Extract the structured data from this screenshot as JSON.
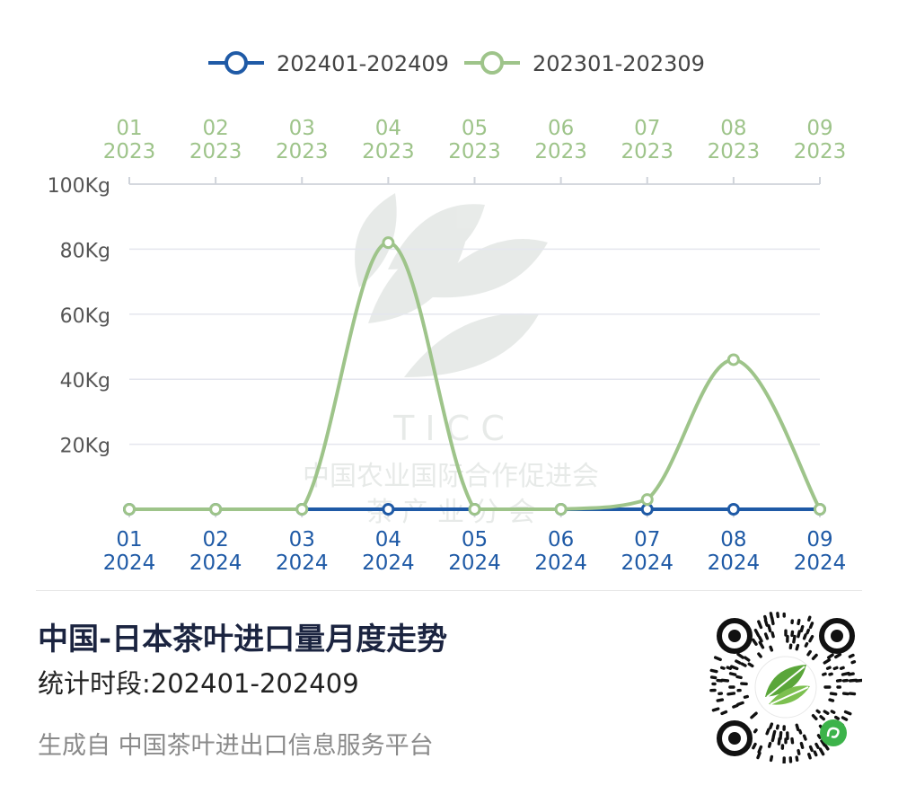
{
  "legend": [
    {
      "label": "202401-202409",
      "color": "#1f5aa6"
    },
    {
      "label": "202301-202309",
      "color": "#9ec48a"
    }
  ],
  "watermark": {
    "line1": "T I C C",
    "line2": "中国农业国际合作促进会",
    "line3": "茶   产   业   分   会"
  },
  "chart_data": {
    "type": "line",
    "y_ticks": [
      "100Kg",
      "80Kg",
      "60Kg",
      "40Kg",
      "20Kg"
    ],
    "ylim": [
      0,
      100
    ],
    "y_unit": "Kg",
    "x_top": [
      {
        "month": "01",
        "year": "2023"
      },
      {
        "month": "02",
        "year": "2023"
      },
      {
        "month": "03",
        "year": "2023"
      },
      {
        "month": "04",
        "year": "2023"
      },
      {
        "month": "05",
        "year": "2023"
      },
      {
        "month": "06",
        "year": "2023"
      },
      {
        "month": "07",
        "year": "2023"
      },
      {
        "month": "08",
        "year": "2023"
      },
      {
        "month": "09",
        "year": "2023"
      }
    ],
    "x_bottom": [
      {
        "month": "01",
        "year": "2024"
      },
      {
        "month": "02",
        "year": "2024"
      },
      {
        "month": "03",
        "year": "2024"
      },
      {
        "month": "04",
        "year": "2024"
      },
      {
        "month": "05",
        "year": "2024"
      },
      {
        "month": "06",
        "year": "2024"
      },
      {
        "month": "07",
        "year": "2024"
      },
      {
        "month": "08",
        "year": "2024"
      },
      {
        "month": "09",
        "year": "2024"
      }
    ],
    "series": [
      {
        "name": "202401-202409",
        "color": "#1f5aa6",
        "values": [
          0,
          0,
          0,
          0,
          0,
          0,
          0,
          0,
          0
        ]
      },
      {
        "name": "202301-202309",
        "color": "#9ec48a",
        "values": [
          0,
          0,
          0,
          82,
          0,
          0,
          3,
          46,
          0
        ]
      }
    ],
    "grid": true
  },
  "info": {
    "title": "中国-日本茶叶进口量月度走势",
    "period": "统计时段:202401-202409",
    "footer": "生成自 中国茶叶进出口信息服务平台"
  }
}
